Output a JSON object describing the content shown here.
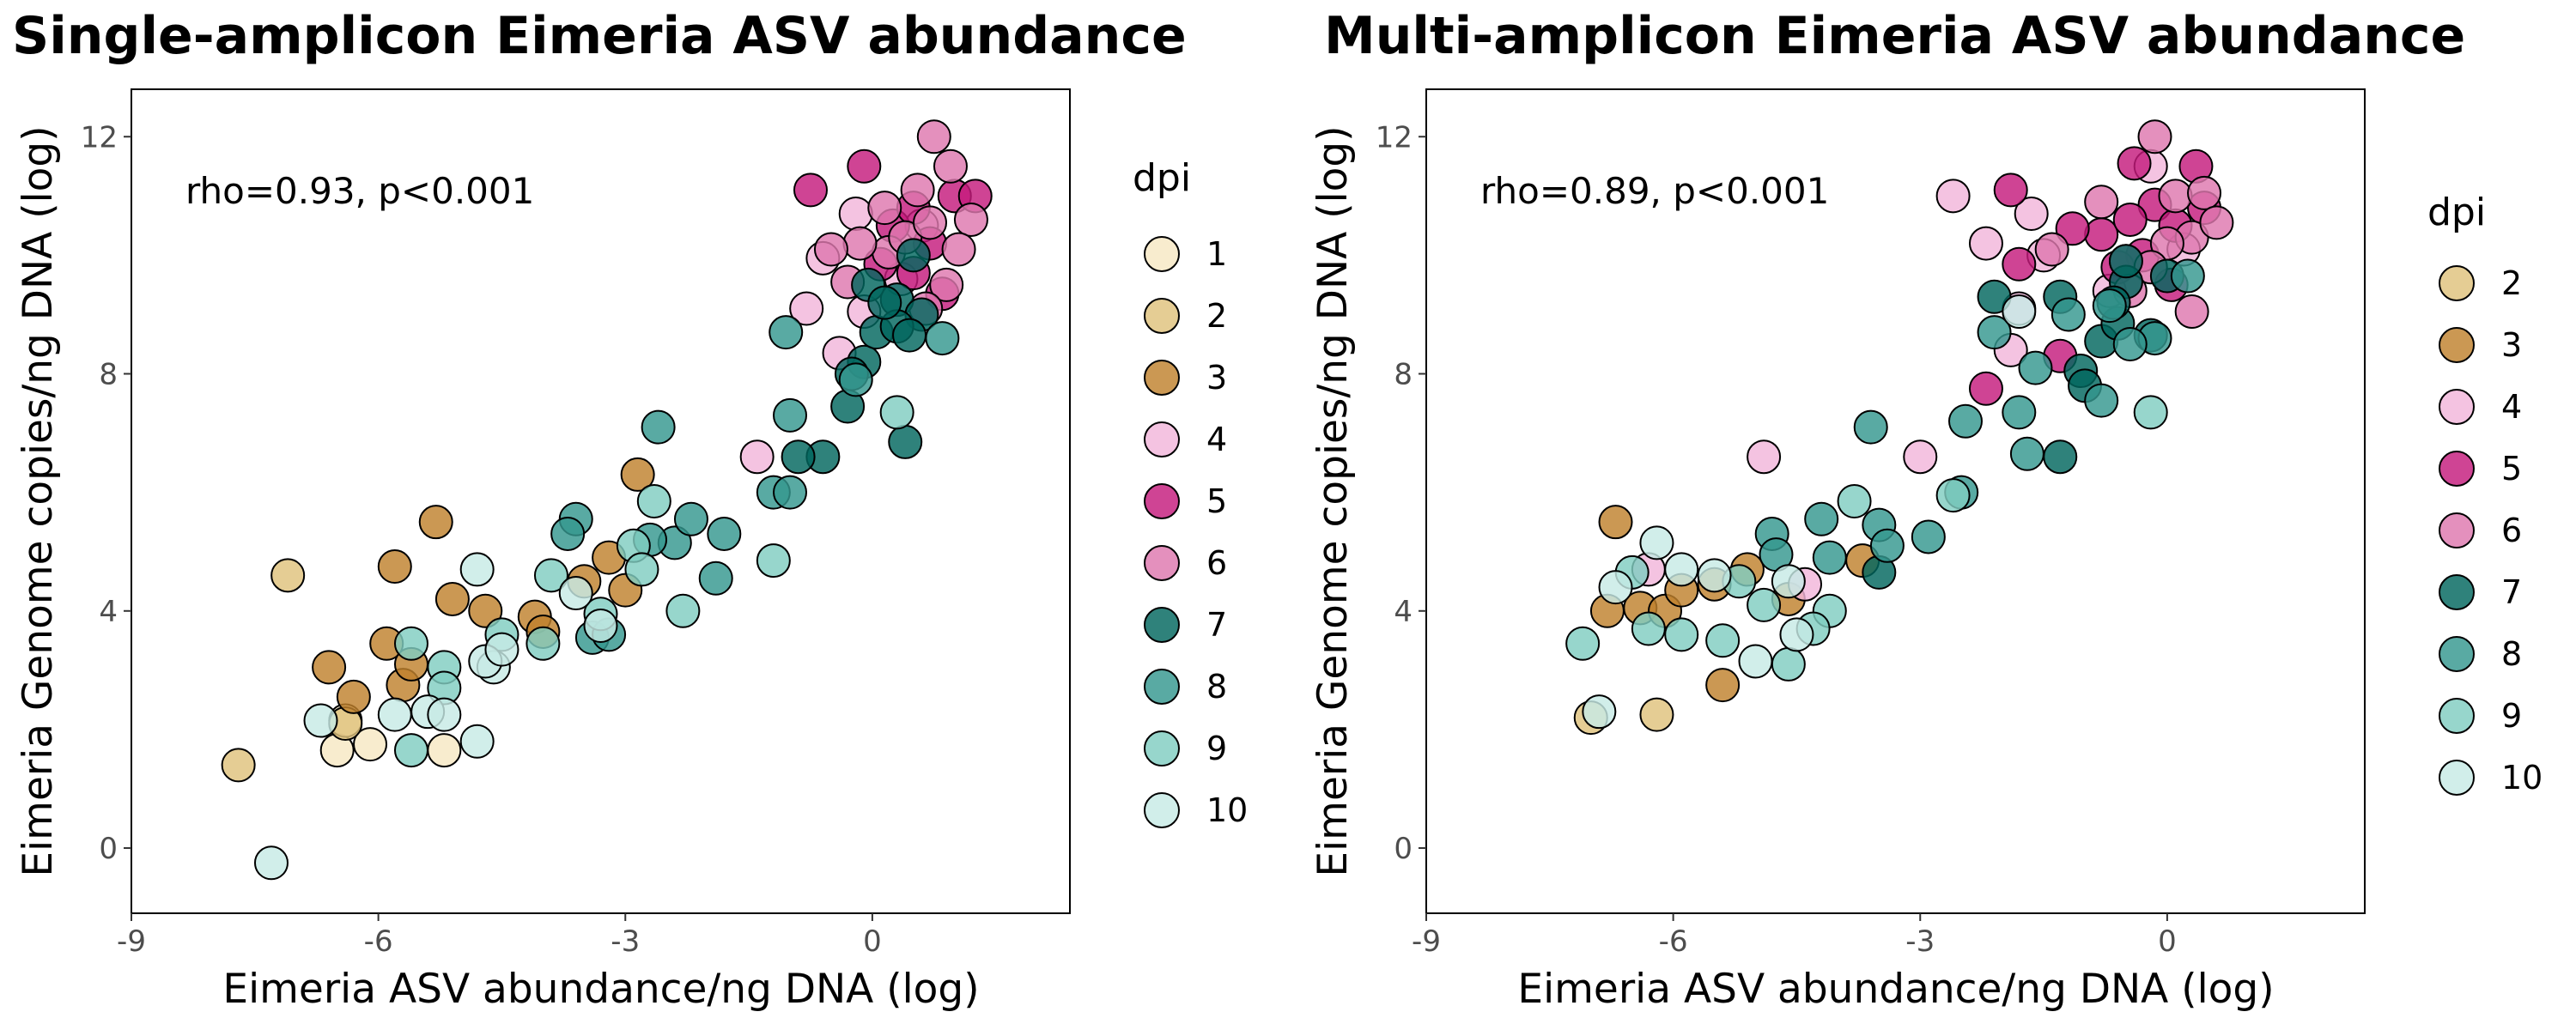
{
  "colors": {
    "1": "#f6e8c3",
    "2": "#dfc27d",
    "3": "#bf812d",
    "4": "#f1b6da",
    "5": "#c51b7d",
    "6": "#de77ae",
    "7": "#01665e",
    "8": "#35978f",
    "9": "#80cdc1",
    "10": "#c7eae5"
  },
  "chart_data": [
    {
      "type": "scatter",
      "title": "Single-amplicon Eimeria ASV abundance",
      "xlabel": "Eimeria ASV abundance/ng DNA (log)",
      "ylabel": "Eimeria Genome copies/ng DNA (log)",
      "xlim": [
        -9,
        2.4
      ],
      "ylim": [
        -1.1,
        12.8
      ],
      "x_ticks": [
        -9,
        -6,
        -3,
        0
      ],
      "y_ticks": [
        0,
        4,
        8,
        12
      ],
      "x_tick_labels": [
        "-9",
        "-6",
        "-3",
        "0"
      ],
      "y_tick_labels": [
        "0",
        "4",
        "8",
        "12"
      ],
      "annotation": "rho=0.93, p<0.001",
      "legend": {
        "title": "dpi",
        "position": "right",
        "entries": [
          "1",
          "2",
          "3",
          "4",
          "5",
          "6",
          "7",
          "8",
          "9",
          "10"
        ]
      },
      "series": [
        {
          "name": "1",
          "points": [
            [
              -6.5,
              1.65
            ],
            [
              -6.1,
              1.75
            ],
            [
              -5.2,
              1.65
            ],
            [
              -6.4,
              2.15
            ]
          ]
        },
        {
          "name": "2",
          "points": [
            [
              -7.7,
              1.4
            ],
            [
              -7.1,
              4.6
            ],
            [
              -6.4,
              2.1
            ]
          ]
        },
        {
          "name": "3",
          "points": [
            [
              -6.6,
              3.05
            ],
            [
              -6.3,
              2.55
            ],
            [
              -5.9,
              3.45
            ],
            [
              -5.8,
              4.75
            ],
            [
              -5.3,
              5.5
            ],
            [
              -5.1,
              4.2
            ],
            [
              -5.7,
              2.75
            ],
            [
              -5.6,
              3.1
            ],
            [
              -4.7,
              4.0
            ],
            [
              -4.1,
              3.9
            ],
            [
              -4.0,
              3.65
            ],
            [
              -3.5,
              4.5
            ],
            [
              -3.0,
              4.35
            ],
            [
              -2.85,
              6.3
            ],
            [
              -3.2,
              4.9
            ]
          ]
        },
        {
          "name": "4",
          "points": [
            [
              -1.4,
              6.6
            ],
            [
              -0.6,
              9.95
            ],
            [
              -0.8,
              9.1
            ],
            [
              -0.4,
              8.35
            ],
            [
              -0.1,
              9.05
            ],
            [
              0.35,
              9.6
            ],
            [
              -0.2,
              10.7
            ],
            [
              0.6,
              10.5
            ]
          ]
        },
        {
          "name": "5",
          "points": [
            [
              -0.75,
              11.1
            ],
            [
              -0.1,
              11.5
            ],
            [
              0.25,
              10.5
            ],
            [
              0.5,
              10.8
            ],
            [
              0.7,
              10.2
            ],
            [
              1.0,
              11.0
            ],
            [
              0.1,
              9.85
            ],
            [
              0.5,
              9.7
            ],
            [
              1.25,
              11.0
            ],
            [
              0.85,
              9.35
            ]
          ]
        },
        {
          "name": "6",
          "points": [
            [
              0.75,
              12.0
            ],
            [
              0.95,
              11.5
            ],
            [
              1.2,
              10.6
            ],
            [
              0.55,
              11.1
            ],
            [
              0.2,
              10.05
            ],
            [
              0.9,
              9.5
            ],
            [
              -0.15,
              10.2
            ],
            [
              0.4,
              10.3
            ],
            [
              1.05,
              10.1
            ],
            [
              0.65,
              9.1
            ],
            [
              -0.3,
              9.55
            ],
            [
              -0.5,
              10.1
            ],
            [
              0.15,
              10.8
            ],
            [
              0.7,
              10.55
            ]
          ]
        },
        {
          "name": "7",
          "points": [
            [
              -0.6,
              6.6
            ],
            [
              -0.3,
              7.45
            ],
            [
              -0.1,
              8.2
            ],
            [
              0.4,
              6.85
            ],
            [
              0.05,
              8.7
            ],
            [
              0.3,
              9.25
            ],
            [
              -0.05,
              9.5
            ],
            [
              0.6,
              9.0
            ],
            [
              0.3,
              8.8
            ],
            [
              -0.25,
              8.0
            ],
            [
              -0.9,
              6.6
            ],
            [
              0.15,
              9.2
            ],
            [
              0.45,
              8.65
            ],
            [
              0.5,
              10.0
            ]
          ]
        },
        {
          "name": "8",
          "points": [
            [
              -2.6,
              7.1
            ],
            [
              -1.05,
              8.7
            ],
            [
              -1.0,
              7.3
            ],
            [
              -0.2,
              7.9
            ],
            [
              0.85,
              8.6
            ],
            [
              -1.2,
              6.0
            ],
            [
              -1.0,
              6.0
            ],
            [
              -2.4,
              5.15
            ],
            [
              -2.7,
              5.2
            ],
            [
              -2.2,
              5.55
            ],
            [
              -1.8,
              5.3
            ],
            [
              -1.9,
              4.55
            ],
            [
              -3.6,
              5.55
            ],
            [
              -3.7,
              5.3
            ],
            [
              -3.4,
              3.55
            ],
            [
              -3.2,
              3.6
            ]
          ]
        },
        {
          "name": "9",
          "points": [
            [
              -5.6,
              3.45
            ],
            [
              -5.2,
              3.05
            ],
            [
              -5.2,
              2.7
            ],
            [
              -4.5,
              3.6
            ],
            [
              -3.9,
              4.6
            ],
            [
              -3.3,
              3.95
            ],
            [
              -2.65,
              5.85
            ],
            [
              -2.9,
              5.1
            ],
            [
              -2.3,
              4.0
            ],
            [
              -1.2,
              4.85
            ],
            [
              -5.6,
              1.65
            ],
            [
              -4.0,
              3.45
            ],
            [
              0.3,
              7.35
            ],
            [
              -2.8,
              4.7
            ]
          ]
        },
        {
          "name": "10",
          "points": [
            [
              -7.3,
              -0.25
            ],
            [
              -6.7,
              2.15
            ],
            [
              -5.8,
              2.25
            ],
            [
              -5.4,
              2.3
            ],
            [
              -5.2,
              2.25
            ],
            [
              -4.8,
              1.8
            ],
            [
              -4.8,
              4.7
            ],
            [
              -4.6,
              3.05
            ],
            [
              -4.7,
              3.15
            ],
            [
              -4.5,
              3.35
            ],
            [
              -3.6,
              4.3
            ],
            [
              -3.3,
              3.75
            ]
          ]
        }
      ]
    },
    {
      "type": "scatter",
      "title": "Multi-amplicon Eimeria ASV abundance",
      "xlabel": "Eimeria ASV abundance/ng DNA (log)",
      "ylabel": "Eimeria Genome copies/ng DNA (log)",
      "xlim": [
        -9,
        2.4
      ],
      "ylim": [
        -1.1,
        12.8
      ],
      "x_ticks": [
        -9,
        -6,
        -3,
        0
      ],
      "y_ticks": [
        0,
        4,
        8,
        12
      ],
      "x_tick_labels": [
        "-9",
        "-6",
        "-3",
        "0"
      ],
      "y_tick_labels": [
        "0",
        "4",
        "8",
        "12"
      ],
      "annotation": "rho=0.89, p<0.001",
      "legend": {
        "title": "dpi",
        "position": "right",
        "entries": [
          "2",
          "3",
          "4",
          "5",
          "6",
          "7",
          "8",
          "9",
          "10"
        ]
      },
      "series": [
        {
          "name": "2",
          "points": [
            [
              -7.0,
              2.2
            ],
            [
              -6.2,
              2.25
            ]
          ]
        },
        {
          "name": "3",
          "points": [
            [
              -6.7,
              5.5
            ],
            [
              -6.4,
              4.05
            ],
            [
              -6.1,
              4.0
            ],
            [
              -6.8,
              4.0
            ],
            [
              -5.9,
              4.35
            ],
            [
              -5.4,
              2.75
            ],
            [
              -5.1,
              4.7
            ],
            [
              -4.6,
              4.2
            ],
            [
              -3.7,
              4.85
            ],
            [
              -5.5,
              4.45
            ]
          ]
        },
        {
          "name": "4",
          "points": [
            [
              -4.9,
              6.6
            ],
            [
              -3.0,
              6.6
            ],
            [
              -2.6,
              11.0
            ],
            [
              -1.65,
              10.7
            ],
            [
              -1.8,
              9.1
            ],
            [
              -2.2,
              10.2
            ],
            [
              -1.9,
              8.4
            ],
            [
              -1.5,
              10.0
            ],
            [
              -0.7,
              9.4
            ],
            [
              -0.2,
              11.5
            ],
            [
              0.2,
              10.1
            ],
            [
              -4.4,
              4.45
            ],
            [
              -6.3,
              4.7
            ]
          ]
        },
        {
          "name": "5",
          "points": [
            [
              -1.9,
              11.1
            ],
            [
              -0.4,
              11.55
            ],
            [
              -0.15,
              10.85
            ],
            [
              0.35,
              11.5
            ],
            [
              0.1,
              10.5
            ],
            [
              -0.8,
              10.35
            ],
            [
              -1.15,
              10.45
            ],
            [
              -1.8,
              9.85
            ],
            [
              -2.2,
              7.75
            ],
            [
              -0.3,
              10.0
            ],
            [
              0.45,
              10.8
            ],
            [
              -1.3,
              8.3
            ],
            [
              0.05,
              9.5
            ],
            [
              -0.45,
              10.6
            ],
            [
              -0.6,
              9.8
            ]
          ]
        },
        {
          "name": "6",
          "points": [
            [
              -0.15,
              12.0
            ],
            [
              0.1,
              11.0
            ],
            [
              0.3,
              10.3
            ],
            [
              0.45,
              11.05
            ],
            [
              0.6,
              10.55
            ],
            [
              -0.5,
              9.9
            ],
            [
              0.3,
              9.05
            ],
            [
              0.0,
              10.2
            ],
            [
              -1.4,
              10.1
            ],
            [
              -0.8,
              10.9
            ],
            [
              -0.2,
              9.8
            ],
            [
              -0.45,
              9.4
            ]
          ]
        },
        {
          "name": "7",
          "points": [
            [
              -2.1,
              9.3
            ],
            [
              -1.3,
              9.3
            ],
            [
              -0.5,
              9.55
            ],
            [
              -0.5,
              9.9
            ],
            [
              -0.8,
              8.55
            ],
            [
              -0.6,
              8.85
            ],
            [
              -1.05,
              8.05
            ],
            [
              -0.2,
              8.65
            ],
            [
              0.0,
              9.65
            ],
            [
              -1.0,
              7.8
            ],
            [
              -0.65,
              9.2
            ],
            [
              -1.3,
              6.6
            ],
            [
              -3.5,
              4.65
            ]
          ]
        },
        {
          "name": "8",
          "points": [
            [
              -2.1,
              8.7
            ],
            [
              -0.7,
              9.15
            ],
            [
              -0.15,
              8.6
            ],
            [
              0.25,
              9.65
            ],
            [
              -1.6,
              8.1
            ],
            [
              -1.2,
              9.0
            ],
            [
              -0.45,
              8.5
            ],
            [
              -0.8,
              7.55
            ],
            [
              -1.8,
              7.35
            ],
            [
              -2.5,
              6.0
            ],
            [
              -2.45,
              7.2
            ],
            [
              -1.7,
              6.65
            ],
            [
              -2.9,
              5.25
            ],
            [
              -3.6,
              7.1
            ],
            [
              -3.5,
              5.45
            ],
            [
              -4.2,
              5.55
            ],
            [
              -4.8,
              5.3
            ],
            [
              -4.75,
              4.95
            ],
            [
              -4.1,
              4.9
            ],
            [
              -3.4,
              5.1
            ]
          ]
        },
        {
          "name": "9",
          "points": [
            [
              -7.1,
              3.45
            ],
            [
              -6.5,
              4.65
            ],
            [
              -6.3,
              3.7
            ],
            [
              -5.9,
              3.6
            ],
            [
              -5.2,
              4.5
            ],
            [
              -4.9,
              4.1
            ],
            [
              -3.8,
              5.85
            ],
            [
              -4.1,
              4.0
            ],
            [
              -4.3,
              3.7
            ],
            [
              -4.6,
              3.1
            ],
            [
              -0.2,
              7.35
            ],
            [
              -2.6,
              5.95
            ],
            [
              -5.4,
              3.5
            ]
          ]
        },
        {
          "name": "10",
          "points": [
            [
              -6.9,
              2.3
            ],
            [
              -6.7,
              4.4
            ],
            [
              -6.2,
              5.15
            ],
            [
              -5.9,
              4.7
            ],
            [
              -5.5,
              4.6
            ],
            [
              -5.0,
              3.15
            ],
            [
              -4.5,
              3.6
            ],
            [
              -4.6,
              4.5
            ],
            [
              -1.8,
              9.05
            ]
          ]
        }
      ]
    }
  ]
}
